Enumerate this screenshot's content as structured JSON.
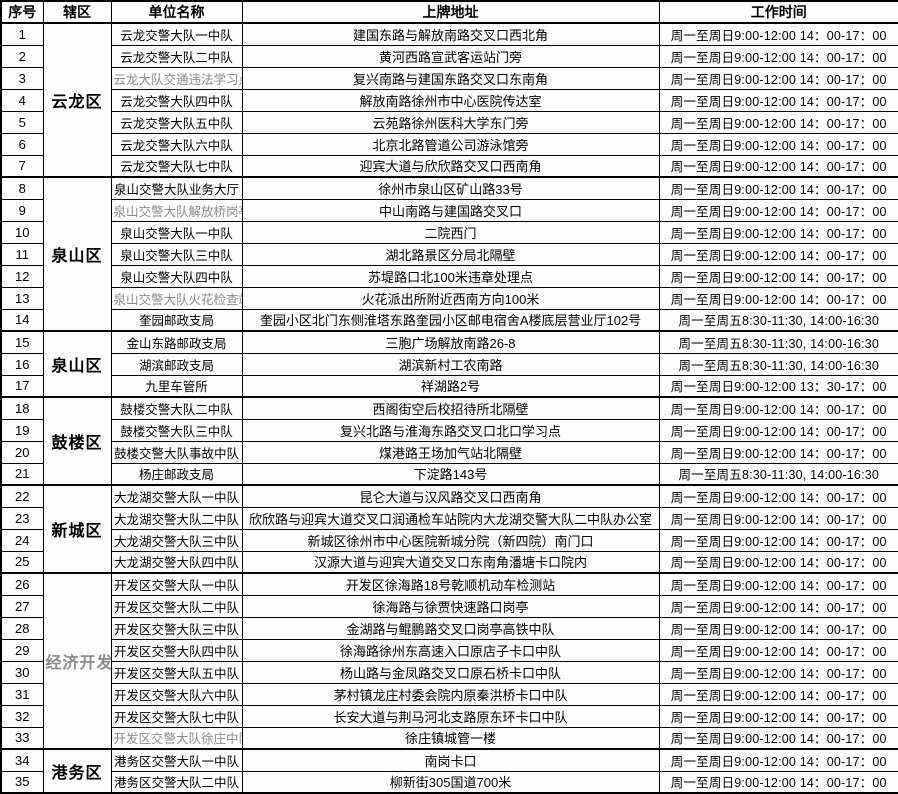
{
  "table": {
    "headers": [
      "序号",
      "辖区",
      "单位名称",
      "上牌地址",
      "工作时间"
    ],
    "groups": [
      {
        "district": "云龙区",
        "district_gray": false,
        "rows": [
          {
            "no": "1",
            "unit": "云龙交警大队一中队",
            "unit_gray": false,
            "address": "建国东路与解放南路交叉口西北角",
            "hours": "周一至周日9:00-12:00 14：00-17：00"
          },
          {
            "no": "2",
            "unit": "云龙交警大队二中队",
            "unit_gray": false,
            "address": "黄河西路宣武客运站门旁",
            "hours": "周一至周日9:00-12:00 14：00-17：00"
          },
          {
            "no": "3",
            "unit": "云龙大队交通违法学习点",
            "unit_gray": true,
            "address": "复兴南路与建国东路交叉口东南角",
            "hours": "周一至周日9:00-12:00 14：00-17：00"
          },
          {
            "no": "4",
            "unit": "云龙交警大队四中队",
            "unit_gray": false,
            "address": "解放南路徐州市中心医院传达室",
            "hours": "周一至周日9:00-12:00 14：00-17：00"
          },
          {
            "no": "5",
            "unit": "云龙交警大队五中队",
            "unit_gray": false,
            "address": "云苑路徐州医科大学东门旁",
            "hours": "周一至周日9:00-12:00 14：00-17：00"
          },
          {
            "no": "6",
            "unit": "云龙交警大队六中队",
            "unit_gray": false,
            "address": "北京北路管道公司游泳馆旁",
            "hours": "周一至周日9:00-12:00 14：00-17：00"
          },
          {
            "no": "7",
            "unit": "云龙交警大队七中队",
            "unit_gray": false,
            "address": "迎宾大道与欣欣路交叉口西南角",
            "hours": "周一至周日9:00-12:00 14：00-17：00"
          }
        ]
      },
      {
        "district": "泉山区",
        "district_gray": false,
        "rows": [
          {
            "no": "8",
            "unit": "泉山交警大队业务大厅",
            "unit_gray": false,
            "address": "徐州市泉山区矿山路33号",
            "hours": "周一至周日9:00-12:00 14：00-17：00"
          },
          {
            "no": "9",
            "unit": "泉山交警大队解放桥岗亭",
            "unit_gray": true,
            "address": "中山南路与建国路交叉口",
            "hours": "周一至周日9:00-12:00 14：00-17：00"
          },
          {
            "no": "10",
            "unit": "泉山交警大队一中队",
            "unit_gray": false,
            "address": "二院西门",
            "hours": "周一至周日9:00-12:00 14：00-17：00"
          },
          {
            "no": "11",
            "unit": "泉山交警大队三中队",
            "unit_gray": false,
            "address": "湖北路景区分局北隔壁",
            "hours": "周一至周日9:00-12:00 14：00-17：00"
          },
          {
            "no": "12",
            "unit": "泉山交警大队四中队",
            "unit_gray": false,
            "address": "苏堤路口北100米违章处理点",
            "hours": "周一至周日9:00-12:00 14：00-17：00"
          },
          {
            "no": "13",
            "unit": "泉山交警大队火花检查站",
            "unit_gray": true,
            "address": "火花派出所附近西南方向100米",
            "hours": "周一至周日9:00-12:00 14：00-17：00"
          },
          {
            "no": "14",
            "unit": "奎园邮政支局",
            "unit_gray": false,
            "address": "奎园小区北门东侧淮塔东路奎园小区邮电宿舍A楼底层营业厅102号",
            "hours": "周一至周五8:30-11:30, 14:00-16:30"
          }
        ]
      },
      {
        "district": "泉山区",
        "district_gray": false,
        "rows": [
          {
            "no": "15",
            "unit": "金山东路邮政支局",
            "unit_gray": false,
            "address": "三胞广场解放南路26-8",
            "hours": "周一至周五8:30-11:30, 14:00-16:30"
          },
          {
            "no": "16",
            "unit": "湖滨邮政支局",
            "unit_gray": false,
            "address": "湖滨新村工农南路",
            "hours": "周一至周五8:30-11:30, 14:00-16:30"
          },
          {
            "no": "17",
            "unit": "九里车管所",
            "unit_gray": false,
            "address": "祥湖路2号",
            "hours": "周一至周日9:00-12:00 13：30-17：00"
          }
        ]
      },
      {
        "district": "鼓楼区",
        "district_gray": false,
        "rows": [
          {
            "no": "18",
            "unit": "鼓楼交警大队二中队",
            "unit_gray": false,
            "address": "西阁街空后校招待所北隔壁",
            "hours": "周一至周日9:00-12:00 14：00-17：00"
          },
          {
            "no": "19",
            "unit": "鼓楼交警大队三中队",
            "unit_gray": false,
            "address": "复兴北路与淮海东路交叉口北口学习点",
            "hours": "周一至周日9:00-12:00 14：00-17：00"
          },
          {
            "no": "20",
            "unit": "鼓楼交警大队事故中队",
            "unit_gray": false,
            "address": "煤港路王场加气站北隔壁",
            "hours": "周一至周日9:00-12:00 14：00-17：00"
          },
          {
            "no": "21",
            "unit": "杨庄邮政支局",
            "unit_gray": false,
            "address": "下淀路143号",
            "hours": "周一至周五8:30-11:30, 14:00-16:30"
          }
        ]
      },
      {
        "district": "新城区",
        "district_gray": false,
        "rows": [
          {
            "no": "22",
            "unit": "大龙湖交警大队一中队",
            "unit_gray": false,
            "address": "昆仑大道与汉风路交叉口西南角",
            "hours": "周一至周日9:00-12:00 14：00-17：00"
          },
          {
            "no": "23",
            "unit": "大龙湖交警大队二中队",
            "unit_gray": false,
            "address": "欣欣路与迎宾大道交叉口润通检车站院内大龙湖交警大队二中队办公室",
            "hours": "周一至周日9:00-12:00 14：00-17：00"
          },
          {
            "no": "24",
            "unit": "大龙湖交警大队三中队",
            "unit_gray": false,
            "address": "新城区徐州市中心医院新城分院（新四院）南门口",
            "hours": "周一至周日9:00-12:00 14：00-17：00"
          },
          {
            "no": "25",
            "unit": "大龙湖交警大队四中队",
            "unit_gray": false,
            "address": "汉源大道与迎宾大道交叉口东南角潘塘卡口院内",
            "hours": "周一至周日9:00-12:00 14：00-17：00"
          }
        ]
      },
      {
        "district": "经济开发区",
        "district_gray": true,
        "rows": [
          {
            "no": "26",
            "unit": "开发区交警大队一中队",
            "unit_gray": false,
            "address": "开发区徐海路18号乾顺机动车检测站",
            "hours": "周一至周日9:00-12:00 14：00-17：00"
          },
          {
            "no": "27",
            "unit": "开发区交警大队二中队",
            "unit_gray": false,
            "address": "徐海路与徐贾快速路口岗亭",
            "hours": "周一至周日9:00-12:00 14：00-17：00"
          },
          {
            "no": "28",
            "unit": "开发区交警大队三中队",
            "unit_gray": false,
            "address": "金湖路与鲲鹏路交叉口岗亭高铁中队",
            "hours": "周一至周日9:00-12:00 14：00-17：00"
          },
          {
            "no": "29",
            "unit": "开发区交警大队四中队",
            "unit_gray": false,
            "address": "徐海路徐州东高速入口原店子卡口中队",
            "hours": "周一至周日9:00-12:00 14：00-17：00"
          },
          {
            "no": "30",
            "unit": "开发区交警大队五中队",
            "unit_gray": false,
            "address": "杨山路与金凤路交叉口原石桥卡口中队",
            "hours": "周一至周日9:00-12:00 14：00-17：00"
          },
          {
            "no": "31",
            "unit": "开发区交警大队六中队",
            "unit_gray": false,
            "address": "茅村镇龙庄村委会院内原秦洪桥卡口中队",
            "hours": "周一至周日9:00-12:00 14：00-17：00"
          },
          {
            "no": "32",
            "unit": "开发区交警大队七中队",
            "unit_gray": false,
            "address": "长安大道与荆马河北支路原东环卡口中队",
            "hours": "周一至周日9:00-12:00 14：00-17：00"
          },
          {
            "no": "33",
            "unit": "开发区交警大队徐庄中队",
            "unit_gray": true,
            "address": "徐庄镇城管一楼",
            "hours": "周一至周日9:00-12:00 14：00-17：00"
          }
        ]
      },
      {
        "district": "港务区",
        "district_gray": false,
        "rows": [
          {
            "no": "34",
            "unit": "港务区交警大队一中队",
            "unit_gray": false,
            "address": "南岗卡口",
            "hours": "周一至周日9:00-12:00 14：00-17：00"
          },
          {
            "no": "35",
            "unit": "港务区交警大队二中队",
            "unit_gray": false,
            "address": "柳新街305国道700米",
            "hours": "周一至周日9:00-12:00 14：00-17：00"
          }
        ]
      }
    ]
  }
}
